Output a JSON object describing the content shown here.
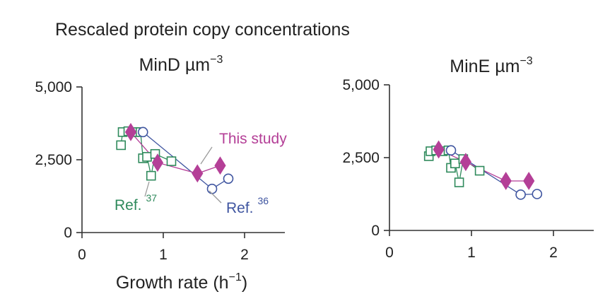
{
  "heading": "Rescaled protein copy concentrations",
  "colors": {
    "this_study": "#b43f97",
    "ref36": "#3f55a0",
    "ref37": "#2f8a5c"
  },
  "chart_data": [
    {
      "type": "scatter",
      "title_main": "MinD ",
      "title_unit": "µm",
      "title_exp": "−3",
      "xlabel_main": "Growth rate (h",
      "xlabel_exp": "−1",
      "xlabel_close": ")",
      "xlim": [
        0,
        2.5
      ],
      "ylim": [
        0,
        5000
      ],
      "xticks": [
        0,
        1,
        2
      ],
      "xtick_labels": [
        "0",
        "1",
        "2"
      ],
      "yticks": [
        0,
        2500,
        5000
      ],
      "ytick_labels": [
        "0",
        "2,500",
        "5,000"
      ],
      "series": [
        {
          "name": "This study",
          "marker": "diamond",
          "color": "#b43f97",
          "x": [
            0.6,
            0.93,
            1.42,
            1.7
          ],
          "y": [
            3450,
            2400,
            2030,
            2300
          ]
        },
        {
          "name": "Ref.",
          "superscript": "36",
          "marker": "circle",
          "color": "#3f55a0",
          "x": [
            0.75,
            1.6,
            1.8
          ],
          "y": [
            3450,
            1500,
            1850
          ]
        },
        {
          "name": "Ref.",
          "superscript": "37",
          "marker": "square",
          "color": "#2f8a5c",
          "x": [
            0.48,
            0.5,
            0.57,
            0.65,
            0.72,
            0.75,
            0.8,
            0.85,
            0.9,
            1.1
          ],
          "y": [
            3000,
            3450,
            3480,
            3450,
            3450,
            2550,
            2600,
            1950,
            2700,
            2450
          ]
        }
      ]
    },
    {
      "type": "scatter",
      "title_main": "MinE ",
      "title_unit": "µm",
      "title_exp": "−3",
      "xlim": [
        0,
        2.5
      ],
      "ylim": [
        0,
        5000
      ],
      "xticks": [
        0,
        1,
        2
      ],
      "xtick_labels": [
        "0",
        "1",
        "2"
      ],
      "yticks": [
        0,
        2500,
        5000
      ],
      "ytick_labels": [
        "0",
        "2,500",
        "5,000"
      ],
      "series": [
        {
          "name": "This study",
          "marker": "diamond",
          "color": "#b43f97",
          "x": [
            0.6,
            0.93,
            1.42,
            1.7
          ],
          "y": [
            2780,
            2350,
            1700,
            1700
          ]
        },
        {
          "name": "Ref. 36",
          "marker": "circle",
          "color": "#3f55a0",
          "x": [
            0.75,
            1.6,
            1.8
          ],
          "y": [
            2750,
            1230,
            1250
          ]
        },
        {
          "name": "Ref. 37",
          "marker": "square",
          "color": "#2f8a5c",
          "x": [
            0.48,
            0.5,
            0.57,
            0.65,
            0.72,
            0.75,
            0.8,
            0.85,
            0.9,
            1.1
          ],
          "y": [
            2550,
            2720,
            2750,
            2720,
            2750,
            2150,
            2300,
            1650,
            2450,
            2050
          ]
        }
      ]
    }
  ]
}
